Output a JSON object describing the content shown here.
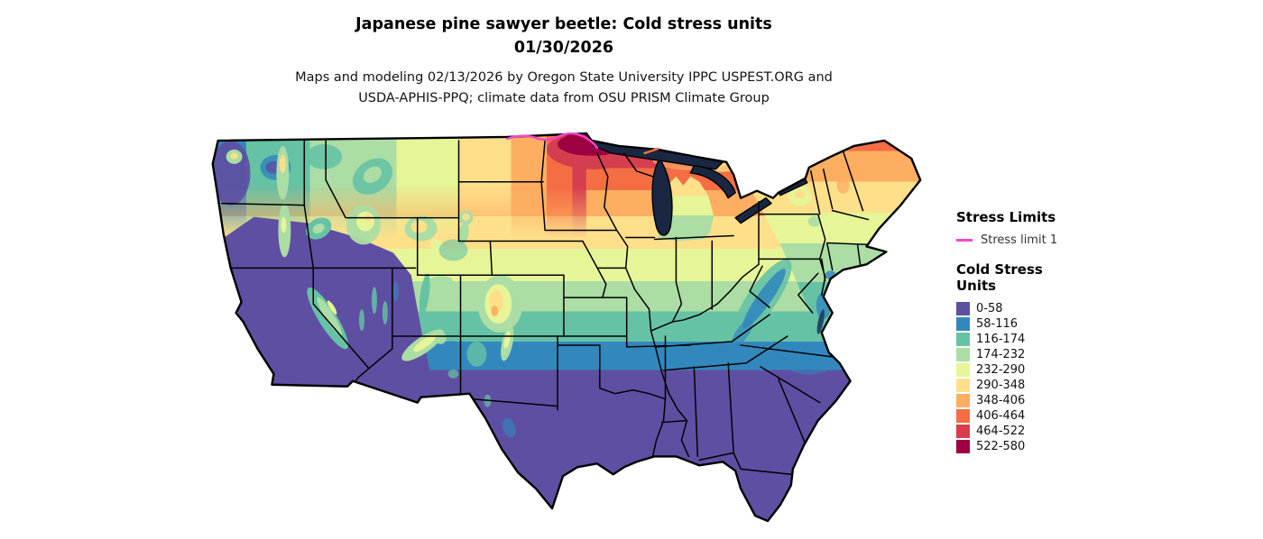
{
  "header": {
    "title_line1": "Japanese pine sawyer beetle: Cold stress units",
    "title_line2": "01/30/2026",
    "subtitle_line1": "Maps and modeling 02/13/2026 by Oregon State University IPPC USPEST.ORG and",
    "subtitle_line2": "USDA-APHIS-PPQ; climate data from OSU PRISM Climate Group"
  },
  "legend": {
    "stress_limits_title": "Stress Limits",
    "stress_limit": {
      "label": "Stress limit 1",
      "color": "#f944cd"
    },
    "units_title_line1": "Cold Stress",
    "units_title_line2": "Units",
    "bins": [
      {
        "label": "0-58",
        "color": "#5e4fa2"
      },
      {
        "label": "58-116",
        "color": "#3288bd"
      },
      {
        "label": "116-174",
        "color": "#66c2a5"
      },
      {
        "label": "174-232",
        "color": "#abdda4"
      },
      {
        "label": "232-290",
        "color": "#e6f598"
      },
      {
        "label": "290-348",
        "color": "#fee08b"
      },
      {
        "label": "348-406",
        "color": "#fdae61"
      },
      {
        "label": "406-464",
        "color": "#f46d43"
      },
      {
        "label": "464-522",
        "color": "#d53e4f"
      },
      {
        "label": "522-580",
        "color": "#9e0142"
      }
    ]
  },
  "map": {
    "outline_color": "#000000",
    "lake_color": "#1a2742"
  }
}
